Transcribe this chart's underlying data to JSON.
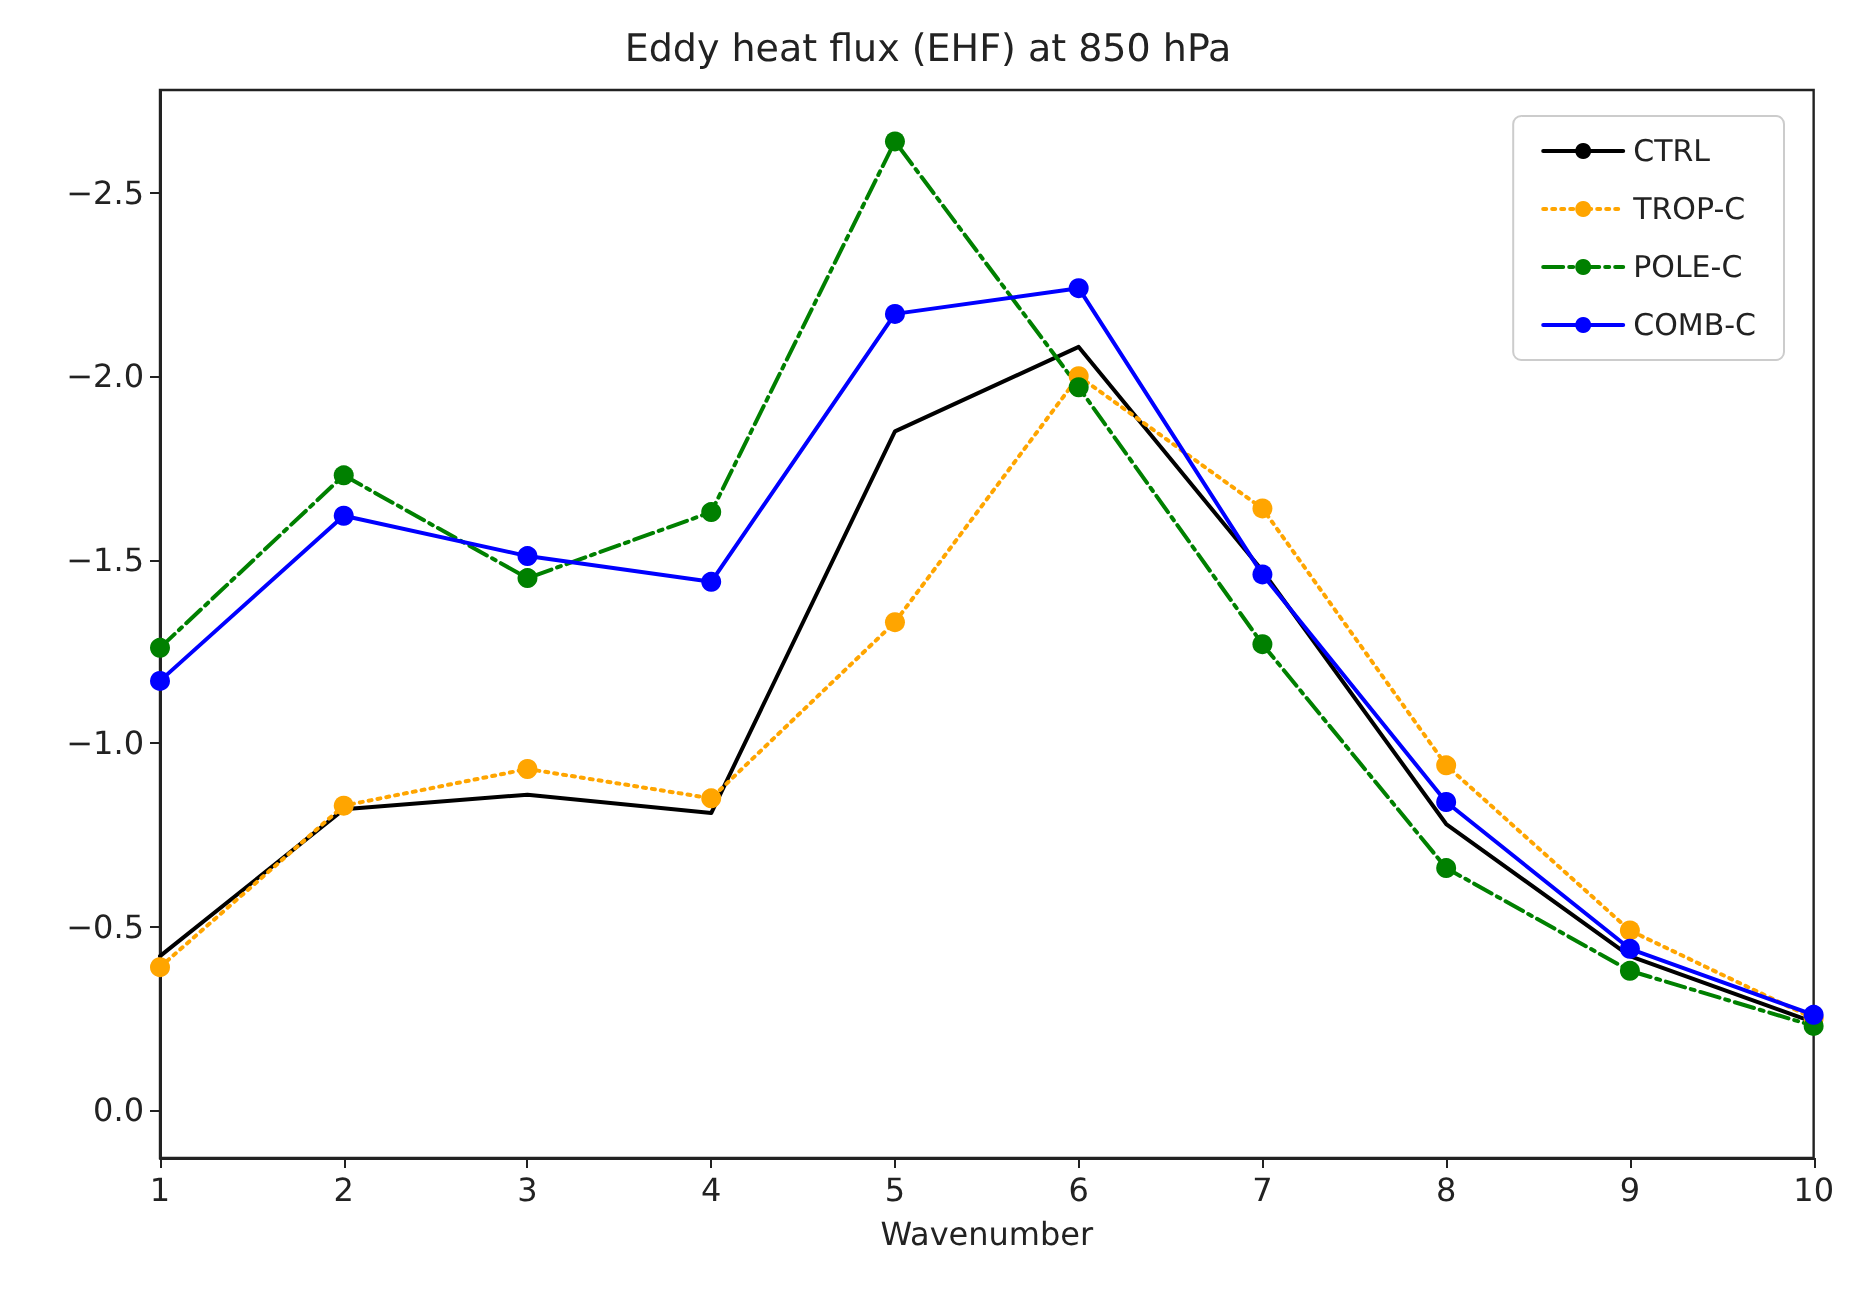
{
  "chart_data": {
    "type": "line",
    "title": "Eddy heat flux (EHF) at 850 hPa",
    "xlabel": "Wavenumber",
    "x": [
      1,
      2,
      3,
      4,
      5,
      6,
      7,
      8,
      9,
      10
    ],
    "series": [
      {
        "name": "CTRL",
        "color": "#000000",
        "marker": "none",
        "line_style": "solid",
        "values": [
          -0.42,
          -0.82,
          -0.86,
          -0.81,
          -1.85,
          -2.08,
          -1.47,
          -0.78,
          -0.42,
          -0.24
        ]
      },
      {
        "name": "TROP-C",
        "color": "#ffa500",
        "marker": "circle",
        "line_style": "dotted",
        "values": [
          -0.39,
          -0.83,
          -0.93,
          -0.85,
          -1.33,
          -2.0,
          -1.64,
          -0.94,
          -0.49,
          -0.25
        ]
      },
      {
        "name": "POLE-C",
        "color": "#008000",
        "marker": "circle",
        "line_style": "dashed",
        "values": [
          -1.26,
          -1.73,
          -1.45,
          -1.63,
          -2.64,
          -1.97,
          -1.27,
          -0.66,
          -0.38,
          -0.23
        ]
      },
      {
        "name": "COMB-C",
        "color": "#0000ff",
        "marker": "circle",
        "line_style": "solid",
        "values": [
          -1.17,
          -1.62,
          -1.51,
          -1.44,
          -2.17,
          -2.24,
          -1.46,
          -0.84,
          -0.44,
          -0.26
        ]
      }
    ],
    "xlim": [
      1,
      10
    ],
    "xticks": [
      1,
      2,
      3,
      4,
      5,
      6,
      7,
      8,
      9,
      10
    ],
    "ylim": [
      0.13,
      -2.78
    ],
    "yticks": [
      {
        "value": 0,
        "label": "0.0"
      },
      {
        "value": -0.5,
        "label": "−0.5"
      },
      {
        "value": -1,
        "label": "−1.0"
      },
      {
        "value": -1.5,
        "label": "−1.5"
      },
      {
        "value": -2,
        "label": "−2.0"
      },
      {
        "value": -2.5,
        "label": "−2.5"
      }
    ],
    "legend": "top right",
    "grid": false
  }
}
